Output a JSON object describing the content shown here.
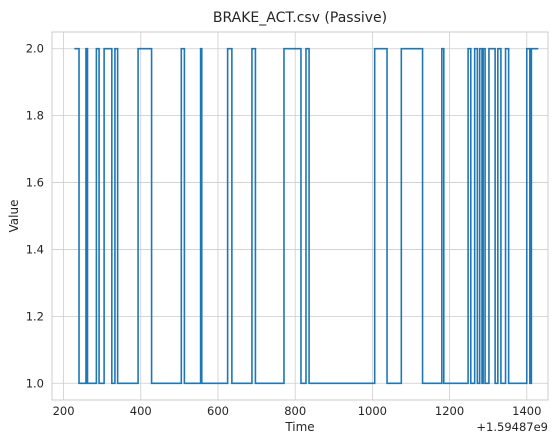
{
  "chart_data": {
    "type": "line",
    "title": "BRAKE_ACT.csv (Passive)",
    "xlabel": "Time",
    "ylabel": "Value",
    "x_offset_label": "+1.59487e9",
    "xlim": [
      170,
      1455
    ],
    "ylim": [
      0.95,
      2.05
    ],
    "xticks": [
      200,
      400,
      600,
      800,
      1000,
      1200,
      1400
    ],
    "yticks": [
      1.0,
      1.2,
      1.4,
      1.6,
      1.8,
      2.0
    ],
    "xtick_labels": [
      "200",
      "400",
      "600",
      "800",
      "1000",
      "1200",
      "1400"
    ],
    "ytick_labels": [
      "1.0",
      "1.2",
      "1.4",
      "1.6",
      "1.8",
      "2.0"
    ],
    "grid": true,
    "drawstyle": "steps-post",
    "series": [
      {
        "color": "#1f77b4",
        "x": [
          228,
          240,
          258,
          262,
          285,
          292,
          305,
          325,
          333,
          340,
          393,
          428,
          505,
          513,
          555,
          558,
          625,
          636,
          688,
          697,
          771,
          815,
          828,
          836,
          1006,
          1038,
          1075,
          1130,
          1180,
          1185,
          1248,
          1255,
          1265,
          1272,
          1278,
          1284,
          1287,
          1292,
          1302,
          1318,
          1325,
          1333,
          1345,
          1353,
          1400,
          1408,
          1412,
          1430
        ],
        "y": [
          2,
          1,
          2,
          1,
          2,
          1,
          2,
          1,
          2,
          1,
          2,
          1,
          2,
          1,
          2,
          1,
          2,
          1,
          2,
          1,
          2,
          1,
          2,
          1,
          2,
          1,
          2,
          1,
          2,
          1,
          2,
          1,
          2,
          1,
          2,
          1,
          2,
          1,
          2,
          1,
          2,
          1,
          2,
          1,
          2,
          1,
          2,
          2
        ]
      }
    ]
  }
}
